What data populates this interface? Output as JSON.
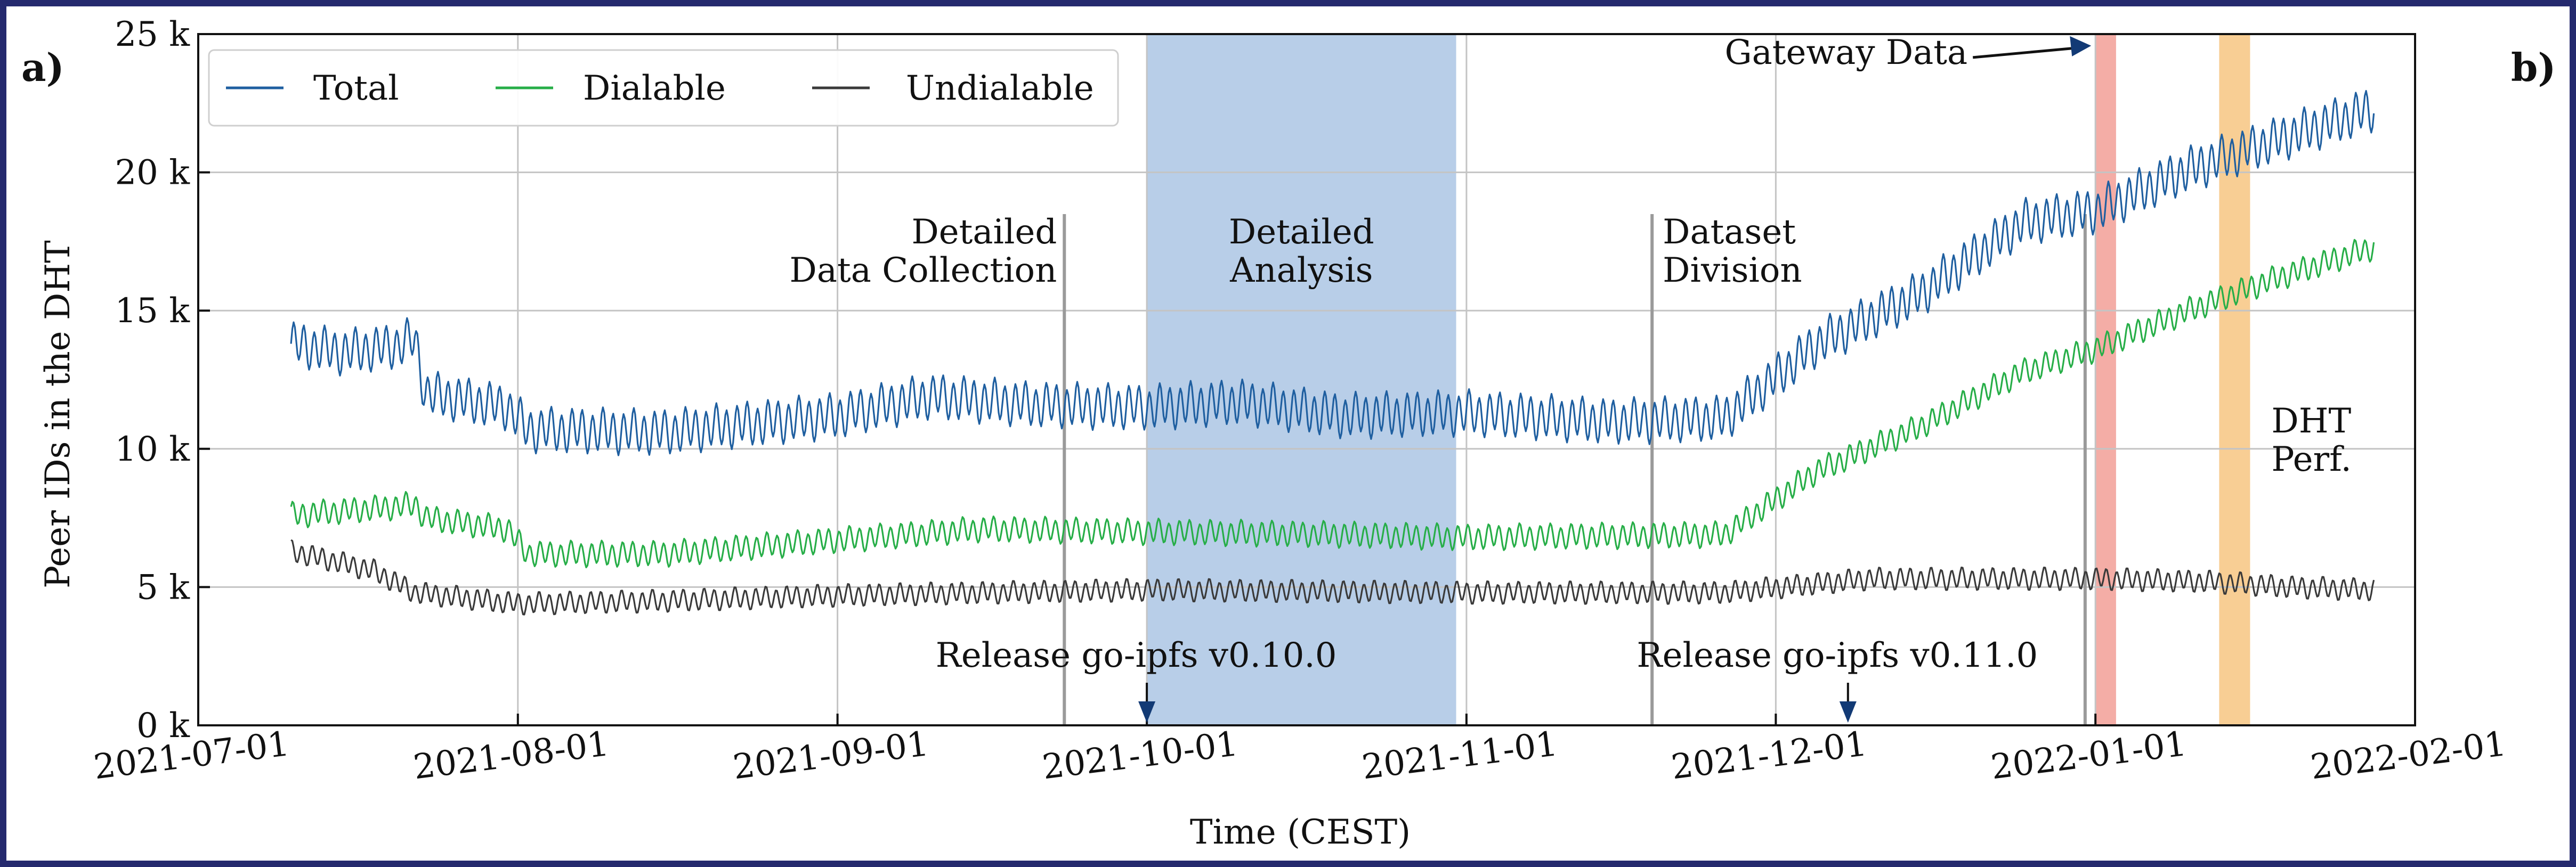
{
  "panel_labels": {
    "left": "a)",
    "right": "b)"
  },
  "chart_data": {
    "type": "line",
    "xlabel": "Time (CEST)",
    "ylabel": "Peer IDs in the DHT",
    "xlim": [
      "2021-07-01",
      "2022-02-01"
    ],
    "x_ticks": [
      "2021-07-01",
      "2021-08-01",
      "2021-09-01",
      "2021-10-01",
      "2021-11-01",
      "2021-12-01",
      "2022-01-01",
      "2022-02-01"
    ],
    "ylim": [
      0,
      25000
    ],
    "y_ticks": [
      "0 k",
      "5 k",
      "10 k",
      "15 k",
      "20 k",
      "25 k"
    ],
    "grid": true,
    "legend_position": "top-left",
    "colors": {
      "Total": "#1f5fa0",
      "Dialable": "#27ae48",
      "Undialable": "#3a3a3a"
    },
    "series": [
      {
        "name": "Total",
        "oscillation_amplitude": 1400,
        "points": [
          [
            "2021-07-10",
            13800
          ],
          [
            "2021-07-15",
            13500
          ],
          [
            "2021-07-20",
            13700
          ],
          [
            "2021-07-22",
            14000
          ],
          [
            "2021-07-23",
            12000
          ],
          [
            "2021-07-31",
            11500
          ],
          [
            "2021-08-02",
            10700
          ],
          [
            "2021-08-15",
            10600
          ],
          [
            "2021-09-01",
            11200
          ],
          [
            "2021-09-10",
            11900
          ],
          [
            "2021-09-20",
            11600
          ],
          [
            "2021-10-01",
            11500
          ],
          [
            "2021-10-10",
            11700
          ],
          [
            "2021-10-20",
            11200
          ],
          [
            "2021-11-01",
            11300
          ],
          [
            "2021-11-15",
            11000
          ],
          [
            "2021-11-26",
            11100
          ],
          [
            "2021-12-05",
            13800
          ],
          [
            "2021-12-15",
            15600
          ],
          [
            "2021-12-25",
            18200
          ],
          [
            "2022-01-01",
            18600
          ],
          [
            "2022-01-10",
            20100
          ],
          [
            "2022-01-18",
            21100
          ],
          [
            "2022-01-28",
            22300
          ]
        ]
      },
      {
        "name": "Dialable",
        "oscillation_amplitude": 800,
        "points": [
          [
            "2021-07-10",
            7600
          ],
          [
            "2021-07-20",
            7900
          ],
          [
            "2021-07-22",
            8000
          ],
          [
            "2021-07-23",
            7500
          ],
          [
            "2021-07-31",
            7100
          ],
          [
            "2021-08-02",
            6200
          ],
          [
            "2021-08-15",
            6200
          ],
          [
            "2021-09-01",
            6700
          ],
          [
            "2021-09-15",
            7100
          ],
          [
            "2021-10-01",
            7000
          ],
          [
            "2021-10-20",
            6900
          ],
          [
            "2021-11-01",
            6800
          ],
          [
            "2021-11-26",
            6900
          ],
          [
            "2021-12-05",
            9200
          ],
          [
            "2021-12-15",
            10800
          ],
          [
            "2021-12-25",
            12800
          ],
          [
            "2022-01-01",
            13600
          ],
          [
            "2022-01-10",
            15000
          ],
          [
            "2022-01-18",
            16100
          ],
          [
            "2022-01-28",
            17300
          ]
        ]
      },
      {
        "name": "Undialable",
        "oscillation_amplitude": 700,
        "points": [
          [
            "2021-07-10",
            6300
          ],
          [
            "2021-07-18",
            5600
          ],
          [
            "2021-07-22",
            4800
          ],
          [
            "2021-08-01",
            4400
          ],
          [
            "2021-08-15",
            4500
          ],
          [
            "2021-09-01",
            4700
          ],
          [
            "2021-10-01",
            4900
          ],
          [
            "2021-11-01",
            4800
          ],
          [
            "2021-11-26",
            4800
          ],
          [
            "2021-12-10",
            5300
          ],
          [
            "2022-01-01",
            5300
          ],
          [
            "2022-01-12",
            5200
          ],
          [
            "2022-01-20",
            5000
          ],
          [
            "2022-01-28",
            4900
          ]
        ]
      }
    ],
    "spans": [
      {
        "label_lines": [
          "Detailed",
          "Analysis"
        ],
        "x0": "2021-10-01",
        "x1": "2021-10-31",
        "color": "#7ea6d6",
        "opacity": 0.55
      },
      {
        "label_lines": [],
        "x0": "2022-01-01",
        "x1": "2022-01-03",
        "color": "#ef8a80",
        "opacity": 0.7
      },
      {
        "label_lines": [
          "DHT",
          "Perf."
        ],
        "x0": "2022-01-13",
        "x1": "2022-01-16",
        "color": "#f5b45a",
        "opacity": 0.65
      }
    ],
    "vlines": [
      {
        "x": "2021-09-23",
        "label_lines": [
          "Detailed",
          "Data Collection"
        ],
        "align": "right"
      },
      {
        "x": "2021-11-19",
        "label_lines": [
          "Dataset",
          "Division"
        ],
        "align": "left"
      },
      {
        "x": "2021-12-31",
        "label_lines": [],
        "align": "none"
      }
    ],
    "annotations": [
      {
        "text": "Release go-ipfs v0.10.0",
        "x": "2021-10-01",
        "y": 0,
        "kind": "release-arrow"
      },
      {
        "text": "Release go-ipfs v0.11.0",
        "x": "2021-12-08",
        "y": 0,
        "kind": "release-arrow"
      },
      {
        "text": "Gateway Data",
        "x": "2022-01-01",
        "y": 23000,
        "kind": "pointer-arrow"
      }
    ]
  }
}
